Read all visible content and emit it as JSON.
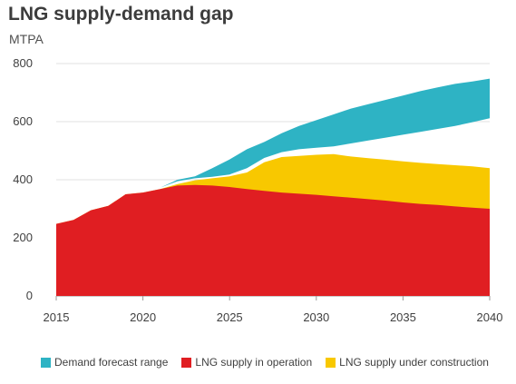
{
  "title": "LNG supply-demand gap",
  "unit": "MTPA",
  "colors": {
    "demand": "#2eb3c4",
    "operation": "#e01e22",
    "construction": "#f8c800",
    "grid": "#e2e2e2",
    "axis": "#9a9a9a"
  },
  "chart_data": {
    "type": "area",
    "title": "LNG supply-demand gap",
    "xlabel": "",
    "ylabel": "MTPA",
    "xlim": [
      2015,
      2040
    ],
    "ylim": [
      0,
      800
    ],
    "x_ticks": [
      "2015",
      "2020",
      "2025",
      "2030",
      "2035",
      "2040"
    ],
    "y_ticks": [
      "0",
      "200",
      "400",
      "600",
      "800"
    ],
    "grid": true,
    "legend_position": "bottom",
    "x": [
      2015,
      2016,
      2017,
      2018,
      2019,
      2020,
      2021,
      2022,
      2023,
      2024,
      2025,
      2026,
      2027,
      2028,
      2029,
      2030,
      2031,
      2032,
      2033,
      2034,
      2035,
      2036,
      2037,
      2038,
      2039,
      2040
    ],
    "series": [
      {
        "name": "Demand forecast range",
        "key": "demand",
        "lower": [
          null,
          null,
          null,
          null,
          null,
          null,
          373,
          395,
          405,
          410,
          418,
          440,
          475,
          495,
          505,
          510,
          515,
          525,
          535,
          545,
          555,
          565,
          575,
          585,
          598,
          612
        ],
        "upper": [
          null,
          null,
          null,
          null,
          null,
          null,
          373,
          400,
          412,
          440,
          470,
          505,
          530,
          560,
          585,
          605,
          625,
          645,
          660,
          675,
          690,
          705,
          718,
          730,
          738,
          748
        ]
      },
      {
        "name": "LNG supply in operation",
        "key": "operation",
        "values": [
          248,
          262,
          295,
          310,
          350,
          356,
          368,
          380,
          382,
          380,
          375,
          368,
          362,
          356,
          352,
          348,
          343,
          338,
          333,
          328,
          322,
          317,
          313,
          308,
          304,
          300
        ]
      },
      {
        "name": "LNG supply under construction",
        "key": "construction",
        "values": [
          248,
          262,
          295,
          310,
          350,
          356,
          368,
          385,
          398,
          405,
          412,
          425,
          460,
          478,
          482,
          486,
          488,
          480,
          474,
          469,
          463,
          458,
          454,
          450,
          446,
          440
        ]
      }
    ]
  }
}
